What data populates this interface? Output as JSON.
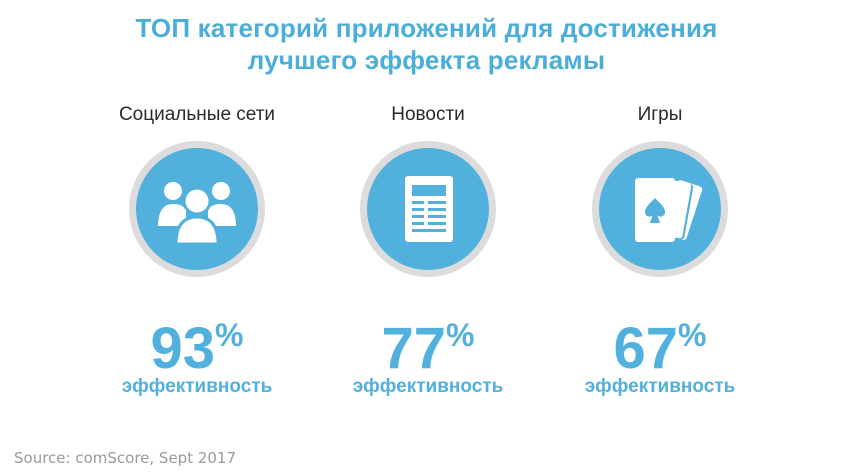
{
  "title": {
    "line1": "ТОП категорий приложений для достижения",
    "line2": "лучшего эффекта рекламы"
  },
  "colors": {
    "accent": "#52b0dc",
    "ring": "#dcdcdc",
    "text": "#2a2a2a",
    "source": "#9a9a9a"
  },
  "categories": [
    {
      "label": "Социальные сети",
      "icon": "people-group-icon",
      "value": "93",
      "unit": "%",
      "caption": "эффективность"
    },
    {
      "label": "Новости",
      "icon": "newspaper-icon",
      "value": "77",
      "unit": "%",
      "caption": "эффективность"
    },
    {
      "label": "Игры",
      "icon": "playing-cards-icon",
      "value": "67",
      "unit": "%",
      "caption": "эффективность"
    }
  ],
  "source": "Source: comScore, Sept 2017"
}
